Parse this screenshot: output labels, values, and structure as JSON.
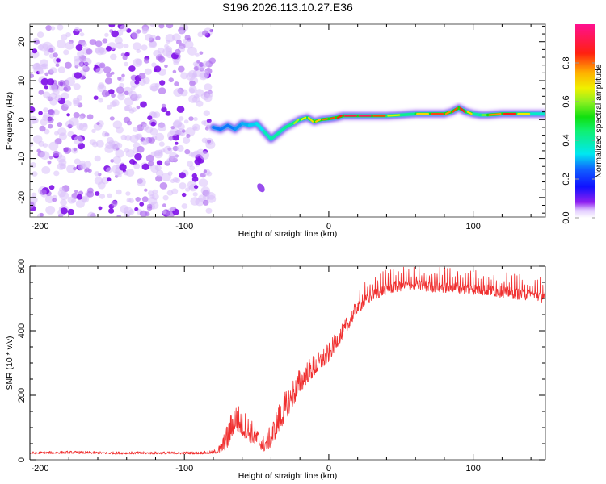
{
  "chart_data": [
    {
      "type": "heatmap",
      "title": "S196.2026.113.10.27.E36",
      "xlabel": "Height of straight line (km)",
      "ylabel": "Frequency (Hz)",
      "xlim": [
        -207,
        150
      ],
      "ylim": [
        -25,
        24.5
      ],
      "xticks": [
        -200,
        -100,
        0,
        100
      ],
      "yticks": [
        -20,
        -10,
        0,
        10,
        20
      ],
      "colorbar": {
        "label": "Normalized spectral amplitude",
        "range": [
          0,
          1
        ],
        "ticks": [
          0.0,
          0.2,
          0.4,
          0.6,
          0.8
        ],
        "tick_labels": [
          "0.0",
          "0.2",
          "0.4",
          "0.6",
          "0.8"
        ]
      },
      "noise_region": {
        "x_range": [
          -207,
          -80
        ],
        "description": "scattered low-amplitude noise across all frequencies"
      },
      "ridge": {
        "x": [
          -80,
          -75,
          -70,
          -65,
          -60,
          -55,
          -50,
          -45,
          -40,
          -35,
          -30,
          -25,
          -20,
          -15,
          -10,
          -5,
          0,
          5,
          10,
          20,
          30,
          40,
          50,
          60,
          70,
          80,
          85,
          90,
          95,
          100,
          105,
          110,
          120,
          130,
          140,
          150
        ],
        "freq_hz": [
          -2,
          -2.5,
          -1.5,
          -2.5,
          -1,
          -1.5,
          -1,
          -3,
          -5,
          -3.5,
          -2,
          -1,
          0,
          0.5,
          -0.5,
          0,
          0.2,
          0.5,
          1,
          1,
          1,
          1,
          1.2,
          1.5,
          1.5,
          1.5,
          2,
          3,
          2,
          1.5,
          1.2,
          1.2,
          1.5,
          1.5,
          1.5,
          1.5
        ],
        "amplitude": [
          0.35,
          0.4,
          0.35,
          0.4,
          0.4,
          0.45,
          0.45,
          0.5,
          0.6,
          0.55,
          0.6,
          0.6,
          0.65,
          0.7,
          0.7,
          0.75,
          0.85,
          0.8,
          0.9,
          0.95,
          0.95,
          0.7,
          0.6,
          0.6,
          0.8,
          0.85,
          0.7,
          0.95,
          0.8,
          0.6,
          0.55,
          0.65,
          0.9,
          0.8,
          0.55,
          0.5
        ]
      },
      "isolated_blob": {
        "x": -47,
        "freq_hz": -17.5,
        "amplitude": 0.15
      }
    },
    {
      "type": "line",
      "xlabel": "Height of straight line (km)",
      "ylabel": "SNR (10 * v/v)",
      "xlim": [
        -207,
        150
      ],
      "ylim": [
        0,
        600
      ],
      "xticks": [
        -200,
        -100,
        0,
        100
      ],
      "yticks": [
        0,
        200,
        400,
        600
      ],
      "series": [
        {
          "name": "SNR",
          "color": "#f03030",
          "x": [
            -207,
            -180,
            -150,
            -120,
            -90,
            -80,
            -75,
            -70,
            -65,
            -60,
            -55,
            -50,
            -45,
            -40,
            -35,
            -30,
            -25,
            -20,
            -15,
            -10,
            -5,
            0,
            5,
            10,
            15,
            20,
            30,
            40,
            50,
            60,
            80,
            100,
            120,
            140,
            150
          ],
          "y": [
            20,
            22,
            20,
            20,
            20,
            22,
            30,
            60,
            120,
            100,
            80,
            60,
            40,
            60,
            110,
            150,
            190,
            230,
            260,
            280,
            300,
            320,
            360,
            390,
            430,
            470,
            510,
            530,
            540,
            540,
            535,
            530,
            520,
            510,
            505
          ],
          "noise_amplitude": [
            8,
            8,
            8,
            8,
            8,
            10,
            30,
            80,
            90,
            90,
            80,
            60,
            50,
            70,
            90,
            90,
            90,
            80,
            70,
            70,
            60,
            60,
            50,
            50,
            50,
            40,
            40,
            40,
            40,
            40,
            40,
            40,
            40,
            40,
            40
          ]
        }
      ]
    }
  ]
}
